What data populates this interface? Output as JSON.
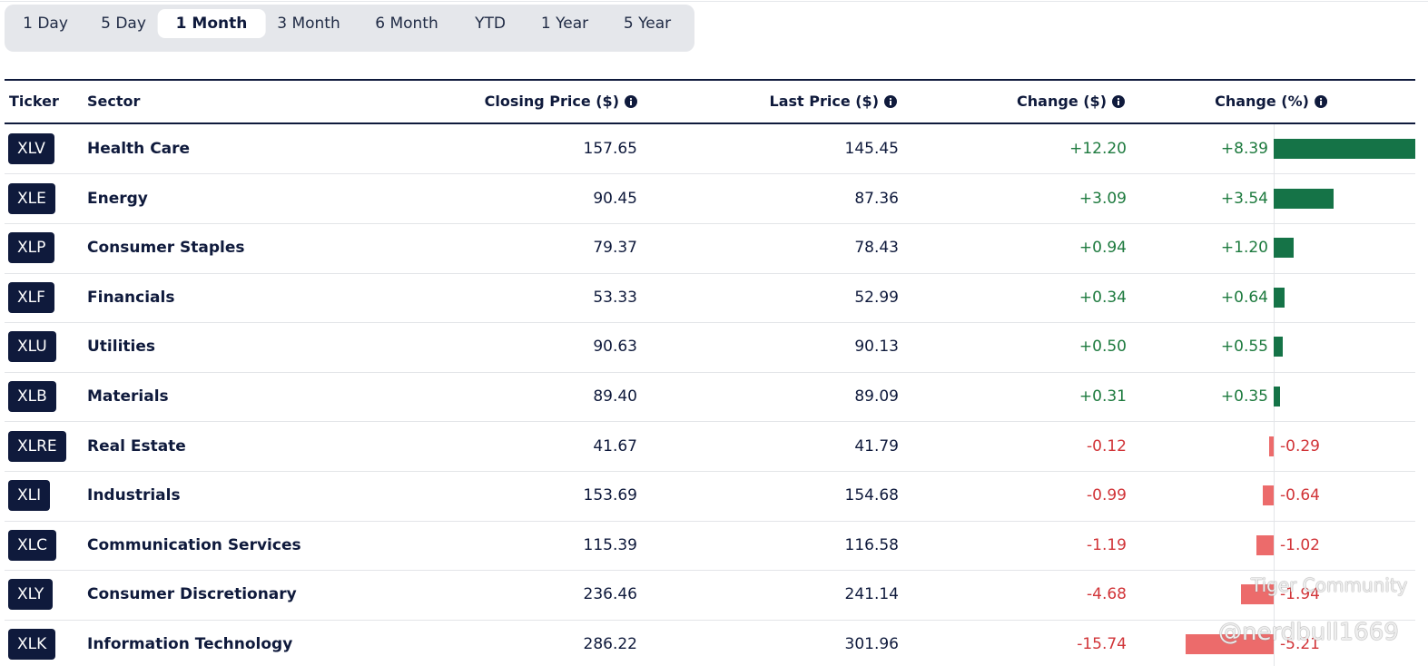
{
  "tabs": [
    "1 Day",
    "5 Day",
    "1 Month",
    "3 Month",
    "6 Month",
    "YTD",
    "1 Year",
    "5 Year"
  ],
  "active_tab": "1 Month",
  "table": {
    "headers": [
      "Ticker",
      "Sector",
      "Closing Price ($)",
      "Last Price ($)",
      "Change ($)",
      "Change (%)"
    ],
    "rows": [
      [
        "XLV",
        "Health Care",
        "157.65",
        "145.45",
        "+12.20",
        {
          "value": 8.39,
          "label": "+8.39"
        }
      ],
      [
        "XLE",
        "Energy",
        "90.45",
        "87.36",
        "+3.09",
        {
          "value": 3.54,
          "label": "+3.54"
        }
      ],
      [
        "XLP",
        "Consumer Staples",
        "79.37",
        "78.43",
        "+0.94",
        {
          "value": 1.2,
          "label": "+1.20"
        }
      ],
      [
        "XLF",
        "Financials",
        "53.33",
        "52.99",
        "+0.34",
        {
          "value": 0.64,
          "label": "+0.64"
        }
      ],
      [
        "XLU",
        "Utilities",
        "90.63",
        "90.13",
        "+0.50",
        {
          "value": 0.55,
          "label": "+0.55"
        }
      ],
      [
        "XLB",
        "Materials",
        "89.40",
        "89.09",
        "+0.31",
        {
          "value": 0.35,
          "label": "+0.35"
        }
      ],
      [
        "XLRE",
        "Real Estate",
        "41.67",
        "41.79",
        "-0.12",
        {
          "value": -0.29,
          "label": "-0.29"
        }
      ],
      [
        "XLI",
        "Industrials",
        "153.69",
        "154.68",
        "-0.99",
        {
          "value": -0.64,
          "label": "-0.64"
        }
      ],
      [
        "XLC",
        "Communication Services",
        "115.39",
        "116.58",
        "-1.19",
        {
          "value": -1.02,
          "label": "-1.02"
        }
      ],
      [
        "XLY",
        "Consumer Discretionary",
        "236.46",
        "241.14",
        "-4.68",
        {
          "value": -1.94,
          "label": "-1.94"
        }
      ],
      [
        "XLK",
        "Information Technology",
        "286.22",
        "301.96",
        "-15.74",
        {
          "value": -5.21,
          "label": "-5.21"
        }
      ]
    ]
  },
  "watermark": [
    "Tiger Community",
    "@nerdbull1669"
  ]
}
